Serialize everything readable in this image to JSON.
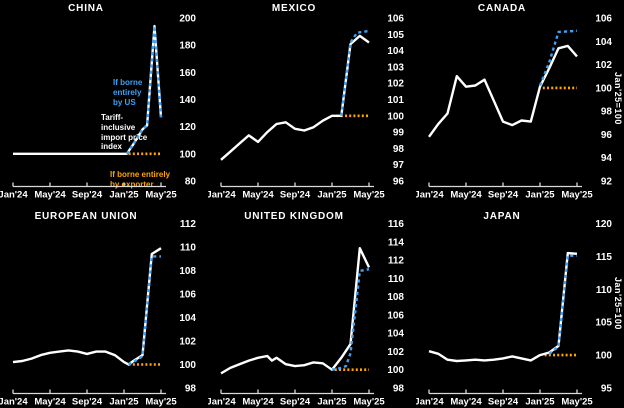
{
  "colors": {
    "background": "#000000",
    "text": "#ffffff",
    "axis": "#d9d9d9",
    "actual": "#ffffff",
    "borne_us": "#3fa1f2",
    "borne_exporter": "#ffa500"
  },
  "axis": {
    "x_ticklabels": [
      "Jan'24",
      "May'24",
      "Sep'24",
      "Jan'25",
      "May'25"
    ],
    "x_tick_months": [
      0,
      4,
      8,
      12,
      16
    ],
    "n_months": 17
  },
  "legend": {
    "actual": "Tariff-inclusive import price index",
    "borne_us": "If borne entirely by US",
    "borne_exporter": "If borne entirely by exporter"
  },
  "chart_data": [
    {
      "type": "line",
      "title": "CHINA",
      "ylim": [
        80,
        200
      ],
      "yticks": [
        80,
        100,
        120,
        140,
        160,
        180,
        200
      ],
      "annotations": [
        {
          "series": "borne_us",
          "text": "If borne\nentirely\nby US"
        },
        {
          "series": "actual",
          "text": "Tariff-\ninclusive\nimport price\nindex"
        },
        {
          "series": "borne_exporter",
          "text": "If borne entirely\nby exporter"
        }
      ],
      "series": [
        {
          "key": "actual",
          "name": "Tariff-inclusive import price index",
          "style": "solid",
          "points": [
            [
              0,
              100
            ],
            [
              12.3,
              100
            ],
            [
              13,
              107
            ],
            [
              14,
              118
            ],
            [
              14.5,
              121
            ],
            [
              15.3,
              194
            ],
            [
              16,
              127
            ]
          ]
        },
        {
          "key": "borne_us",
          "name": "If borne entirely by US",
          "style": "dashed",
          "points": [
            [
              12.3,
              100
            ],
            [
              13,
              107
            ],
            [
              14,
              118
            ],
            [
              14.5,
              121
            ],
            [
              15.3,
              194
            ],
            [
              16,
              127
            ]
          ]
        },
        {
          "key": "borne_exporter",
          "name": "If borne entirely by exporter",
          "style": "dotted",
          "points": [
            [
              12.5,
              100
            ],
            [
              16,
              100
            ]
          ]
        }
      ]
    },
    {
      "type": "line",
      "title": "MEXICO",
      "ylim": [
        96,
        106
      ],
      "yticks": [
        96,
        97,
        98,
        99,
        100,
        101,
        102,
        103,
        104,
        105,
        106
      ],
      "series": [
        {
          "key": "actual",
          "name": "Tariff-inclusive import price index",
          "style": "solid",
          "points": [
            [
              0,
              97.3
            ],
            [
              1,
              97.8
            ],
            [
              2,
              98.3
            ],
            [
              3,
              98.8
            ],
            [
              4,
              98.4
            ],
            [
              5,
              99.0
            ],
            [
              6,
              99.5
            ],
            [
              7,
              99.6
            ],
            [
              8,
              99.2
            ],
            [
              9,
              99.1
            ],
            [
              10,
              99.3
            ],
            [
              11,
              99.7
            ],
            [
              12,
              100.0
            ],
            [
              13,
              100.0
            ],
            [
              14,
              104.4
            ],
            [
              15,
              104.9
            ],
            [
              16,
              104.5
            ]
          ]
        },
        {
          "key": "borne_us",
          "name": "If borne entirely by US",
          "style": "dashed",
          "points": [
            [
              13,
              100
            ],
            [
              14,
              104.5
            ],
            [
              14.7,
              105.1
            ],
            [
              16,
              105.2
            ]
          ]
        },
        {
          "key": "borne_exporter",
          "name": "If borne entirely by exporter",
          "style": "dotted",
          "points": [
            [
              12.5,
              100
            ],
            [
              16,
              100
            ]
          ]
        }
      ]
    },
    {
      "type": "line",
      "title": "CANADA",
      "ylim": [
        92,
        106
      ],
      "yticks": [
        92,
        94,
        96,
        98,
        100,
        102,
        104,
        106
      ],
      "right_axis_label": "Jan'25=100",
      "series": [
        {
          "key": "actual",
          "name": "Tariff-inclusive import price index",
          "style": "solid",
          "points": [
            [
              0,
              95.8
            ],
            [
              1,
              96.9
            ],
            [
              2,
              97.8
            ],
            [
              3,
              101.0
            ],
            [
              4,
              100.1
            ],
            [
              5,
              100.2
            ],
            [
              6,
              100.7
            ],
            [
              7,
              98.9
            ],
            [
              8,
              97.1
            ],
            [
              9,
              96.8
            ],
            [
              10,
              97.2
            ],
            [
              11,
              97.1
            ],
            [
              12,
              100.1
            ],
            [
              13,
              101.7
            ],
            [
              14,
              103.4
            ],
            [
              15,
              103.6
            ],
            [
              16,
              102.7
            ]
          ]
        },
        {
          "key": "borne_us",
          "name": "If borne entirely by US",
          "style": "dashed",
          "points": [
            [
              12,
              100.2
            ],
            [
              13,
              102.2
            ],
            [
              14,
              104.8
            ],
            [
              16,
              104.9
            ]
          ]
        },
        {
          "key": "borne_exporter",
          "name": "If borne entirely by exporter",
          "style": "dotted",
          "points": [
            [
              12.3,
              100
            ],
            [
              16,
              100
            ]
          ]
        }
      ]
    },
    {
      "type": "line",
      "title": "EUROPEAN UNION",
      "ylim": [
        98,
        112
      ],
      "yticks": [
        98,
        100,
        102,
        104,
        106,
        108,
        110,
        112
      ],
      "series": [
        {
          "key": "actual",
          "name": "Tariff-inclusive import price index",
          "style": "solid",
          "points": [
            [
              0,
              100.2
            ],
            [
              1,
              100.3
            ],
            [
              2,
              100.5
            ],
            [
              3,
              100.8
            ],
            [
              4,
              101.0
            ],
            [
              5,
              101.1
            ],
            [
              6,
              101.2
            ],
            [
              7,
              101.1
            ],
            [
              8,
              100.9
            ],
            [
              9,
              101.1
            ],
            [
              10,
              101.1
            ],
            [
              11,
              100.8
            ],
            [
              12,
              100.2
            ],
            [
              12.5,
              100.0
            ],
            [
              13,
              100.3
            ],
            [
              14,
              100.8
            ],
            [
              15,
              109.4
            ],
            [
              16,
              109.9
            ]
          ]
        },
        {
          "key": "borne_us",
          "name": "If borne entirely by US",
          "style": "dashed",
          "points": [
            [
              12.5,
              100
            ],
            [
              13,
              100.2
            ],
            [
              14,
              100.7
            ],
            [
              15,
              109.2
            ],
            [
              16,
              109.2
            ]
          ]
        },
        {
          "key": "borne_exporter",
          "name": "If borne entirely by exporter",
          "style": "dotted",
          "points": [
            [
              12.5,
              100
            ],
            [
              16,
              100
            ]
          ]
        }
      ]
    },
    {
      "type": "line",
      "title": "UNITED KINGDOM",
      "ylim": [
        98,
        116
      ],
      "yticks": [
        98,
        100,
        102,
        104,
        106,
        108,
        110,
        112,
        114,
        116
      ],
      "series": [
        {
          "key": "actual",
          "name": "Tariff-inclusive import price index",
          "style": "solid",
          "points": [
            [
              0,
              99.6
            ],
            [
              1,
              100.2
            ],
            [
              2,
              100.6
            ],
            [
              3,
              101.0
            ],
            [
              4,
              101.3
            ],
            [
              5,
              101.5
            ],
            [
              5.5,
              101.0
            ],
            [
              6,
              101.3
            ],
            [
              7,
              100.6
            ],
            [
              8,
              100.4
            ],
            [
              9,
              100.5
            ],
            [
              10,
              100.8
            ],
            [
              11,
              100.7
            ],
            [
              12,
              100.0
            ],
            [
              13,
              101.3
            ],
            [
              14,
              102.8
            ],
            [
              15,
              113.3
            ],
            [
              16,
              111.2
            ]
          ]
        },
        {
          "key": "borne_us",
          "name": "If borne entirely by US",
          "style": "dashed",
          "points": [
            [
              12,
              100
            ],
            [
              13,
              100.2
            ],
            [
              13.5,
              100.4
            ],
            [
              14,
              101.8
            ],
            [
              15,
              110.8
            ],
            [
              16,
              111.0
            ]
          ]
        },
        {
          "key": "borne_exporter",
          "name": "If borne entirely by exporter",
          "style": "dotted",
          "points": [
            [
              12.3,
              100
            ],
            [
              16,
              100
            ]
          ]
        }
      ]
    },
    {
      "type": "line",
      "title": "JAPAN",
      "ylim": [
        95,
        120
      ],
      "yticks": [
        95,
        100,
        105,
        110,
        115,
        120
      ],
      "right_axis_label": "Jan'25=100",
      "series": [
        {
          "key": "actual",
          "name": "Tariff-inclusive import price index",
          "style": "solid",
          "points": [
            [
              0,
              100.6
            ],
            [
              1,
              100.2
            ],
            [
              2,
              99.3
            ],
            [
              3,
              99.1
            ],
            [
              4,
              99.2
            ],
            [
              5,
              99.3
            ],
            [
              6,
              99.2
            ],
            [
              7,
              99.3
            ],
            [
              8,
              99.5
            ],
            [
              9,
              99.8
            ],
            [
              10,
              99.5
            ],
            [
              11,
              99.2
            ],
            [
              12,
              100.0
            ],
            [
              13,
              100.4
            ],
            [
              14,
              101.4
            ],
            [
              15,
              115.5
            ],
            [
              16,
              115.4
            ]
          ]
        },
        {
          "key": "borne_us",
          "name": "If borne entirely by US",
          "style": "dashed",
          "points": [
            [
              13,
              100.2
            ],
            [
              14,
              101.3
            ],
            [
              15,
              115.1
            ],
            [
              16,
              115.1
            ]
          ]
        },
        {
          "key": "borne_exporter",
          "name": "If borne entirely by exporter",
          "style": "dotted",
          "points": [
            [
              12.5,
              100
            ],
            [
              16,
              100
            ]
          ]
        }
      ]
    }
  ]
}
